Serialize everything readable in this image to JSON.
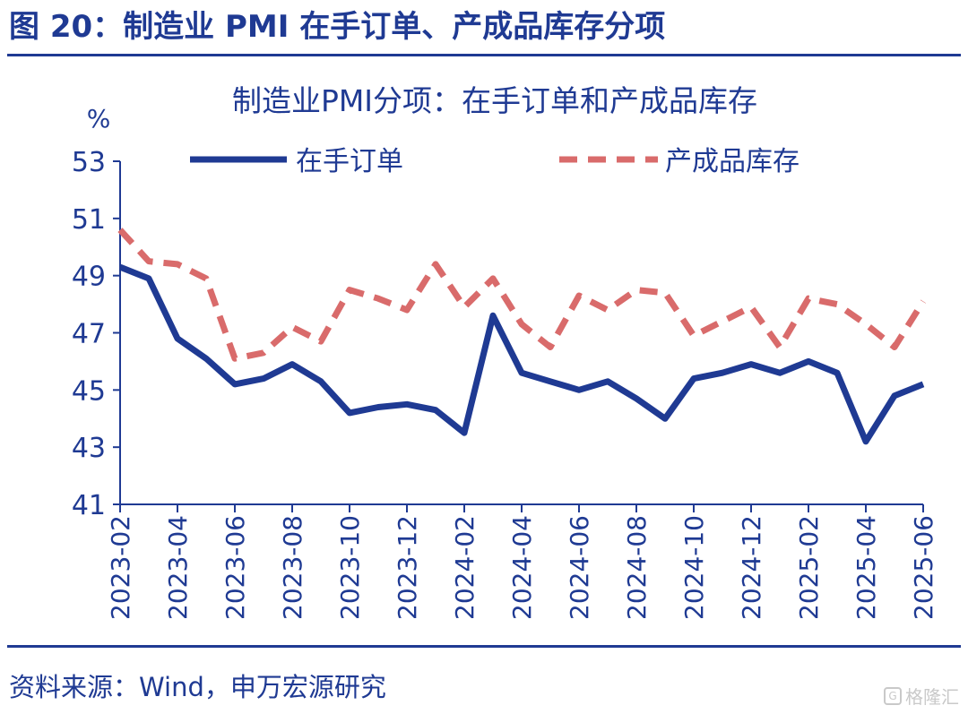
{
  "figure": {
    "title": "图 20：制造业 PMI 在手订单、产成品库存分项",
    "source": "资料来源：Wind，申万宏源研究",
    "watermark": "格隆汇"
  },
  "colors": {
    "accent": "#1f3a93",
    "series_orders": "#1f3a93",
    "series_inventory": "#d96b6b"
  },
  "chart_data": {
    "type": "line",
    "title": "制造业PMI分项：在手订单和产成品库存",
    "ylabel": "%",
    "ylim": [
      41,
      53
    ],
    "yticks": [
      41,
      43,
      45,
      47,
      49,
      51,
      53
    ],
    "grid": false,
    "legend_position": "top",
    "xticks": [
      "2023-02",
      "2023-04",
      "2023-06",
      "2023-08",
      "2023-10",
      "2023-12",
      "2024-02",
      "2024-04",
      "2024-06",
      "2024-08",
      "2024-10",
      "2024-12",
      "2025-02",
      "2025-04",
      "2025-06"
    ],
    "x": [
      "2023-02",
      "2023-03",
      "2023-04",
      "2023-05",
      "2023-06",
      "2023-07",
      "2023-08",
      "2023-09",
      "2023-10",
      "2023-11",
      "2023-12",
      "2024-01",
      "2024-02",
      "2024-03",
      "2024-04",
      "2024-05",
      "2024-06",
      "2024-07",
      "2024-08",
      "2024-09",
      "2024-10",
      "2024-11",
      "2024-12",
      "2025-01",
      "2025-02",
      "2025-03",
      "2025-04",
      "2025-05",
      "2025-06"
    ],
    "series": [
      {
        "name": "在手订单",
        "style": "solid",
        "values": [
          49.3,
          48.9,
          46.8,
          46.1,
          45.2,
          45.4,
          45.9,
          45.3,
          44.2,
          44.4,
          44.5,
          44.3,
          43.5,
          47.6,
          45.6,
          45.3,
          45.0,
          45.3,
          44.7,
          44.0,
          45.4,
          45.6,
          45.9,
          45.6,
          46.0,
          45.6,
          43.2,
          44.8,
          45.2
        ]
      },
      {
        "name": "产成品库存",
        "style": "dashed",
        "values": [
          50.6,
          49.5,
          49.4,
          48.9,
          46.1,
          46.3,
          47.2,
          46.7,
          48.5,
          48.2,
          47.8,
          49.4,
          47.9,
          48.9,
          47.3,
          46.5,
          48.3,
          47.8,
          48.5,
          48.4,
          46.9,
          47.4,
          47.9,
          46.5,
          48.2,
          48.0,
          47.3,
          46.5,
          48.1
        ]
      }
    ]
  }
}
